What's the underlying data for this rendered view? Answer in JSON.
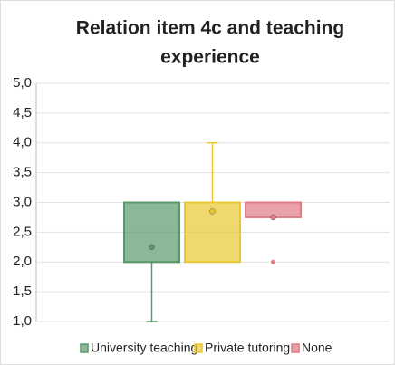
{
  "chart_data": {
    "type": "box",
    "title": [
      "Relation item 4c and teaching",
      "experience"
    ],
    "ylim": [
      1,
      5
    ],
    "yticks": [
      {
        "value": 1,
        "label": "1,0"
      },
      {
        "value": 1.5,
        "label": "1,5"
      },
      {
        "value": 2,
        "label": "2,0"
      },
      {
        "value": 2.5,
        "label": "2,5"
      },
      {
        "value": 3,
        "label": "3,0"
      },
      {
        "value": 3.5,
        "label": "3,5"
      },
      {
        "value": 4,
        "label": "4,0"
      },
      {
        "value": 4.5,
        "label": "4,5"
      },
      {
        "value": 5,
        "label": "5,0"
      }
    ],
    "grid": true,
    "legend": "bottom",
    "series": [
      {
        "name": "University teaching",
        "color": "#5a9a6a",
        "min": 1,
        "q1": 2,
        "median": 2,
        "q3": 3,
        "max": 3,
        "mean": 2.25,
        "outliers": []
      },
      {
        "name": "Private tutoring",
        "color": "#e8c830",
        "min": 2,
        "q1": 2,
        "median": 3,
        "q3": 3,
        "max": 4,
        "mean": 2.85,
        "outliers": []
      },
      {
        "name": "None",
        "color": "#e07a85",
        "min": 2.75,
        "q1": 2.75,
        "median": 3,
        "q3": 3,
        "max": 3,
        "mean": 2.75,
        "outliers": [
          2
        ]
      }
    ]
  }
}
